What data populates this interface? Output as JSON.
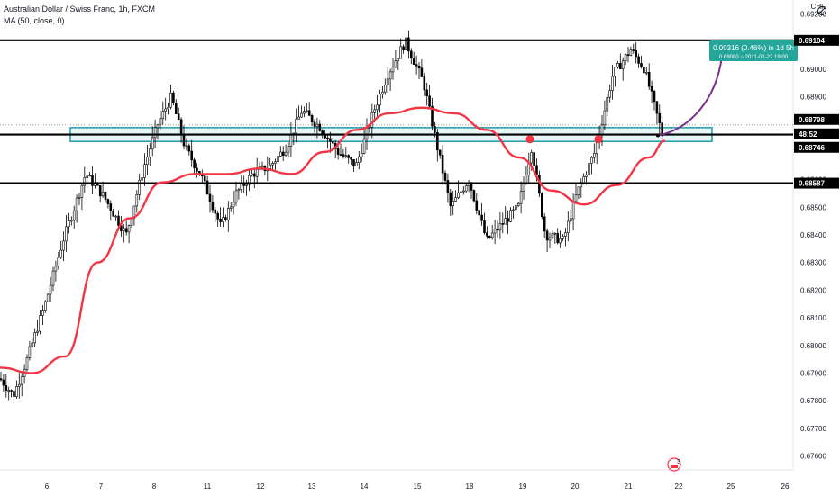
{
  "legend": {
    "symbol": "Australian Dollar / Swiss Franc, 1h, FXCM",
    "indicator": "MA (50, close, 0)"
  },
  "axis": {
    "currency": "CHF",
    "right_ticks": [
      "0.69200",
      "0.69000",
      "0.68900",
      "0.68600",
      "0.68500",
      "0.68400",
      "0.68300",
      "0.68200",
      "0.68100",
      "0.68000",
      "0.67900",
      "0.67800",
      "0.67700",
      "0.67600"
    ],
    "badge_count": "3"
  },
  "price_labels": [
    {
      "text": "0.69104",
      "value": 0.69104,
      "style": "black"
    },
    {
      "text": "0.68798",
      "value": 0.68798,
      "style": "black"
    },
    {
      "text": "48:52",
      "value": 0.68772,
      "style": "black"
    },
    {
      "text": "0.68746",
      "value": 0.68746,
      "style": "black"
    },
    {
      "text": "0.68587",
      "value": 0.68587,
      "style": "black"
    }
  ],
  "projection_box": {
    "line1": "0.00316 (0.46%) in 1d 5h",
    "line2a": "0.69080",
    "line2b": "2021-01-22",
    "line2c": "19:00",
    "color": "#26a69a"
  },
  "colors": {
    "candles": "#000000",
    "ma": "#f23645",
    "zone_border": "#1e9aa8",
    "zone_fill": "#ffffff",
    "projection": "#7b2d8e",
    "marker": "#f23645"
  },
  "chart_data": {
    "type": "candlestick",
    "title": "Australian Dollar / Swiss Franc, 1h, FXCM",
    "x_ticks": [
      "6",
      "7",
      "8",
      "11",
      "12",
      "13",
      "14",
      "15",
      "18",
      "19",
      "20",
      "21",
      "22",
      "25",
      "26"
    ],
    "ylim": [
      0.6755,
      0.6925
    ],
    "horizontal_lines": [
      0.69104,
      0.68763,
      0.68587
    ],
    "zone": [
      0.68738,
      0.68788
    ],
    "ma_path": [
      [
        0,
        0.6792
      ],
      [
        0.04,
        0.679
      ],
      [
        0.08,
        0.6796
      ],
      [
        0.12,
        0.683
      ],
      [
        0.16,
        0.6846
      ],
      [
        0.2,
        0.6859
      ],
      [
        0.24,
        0.6862
      ],
      [
        0.28,
        0.6862
      ],
      [
        0.32,
        0.6864
      ],
      [
        0.36,
        0.6862
      ],
      [
        0.4,
        0.687
      ],
      [
        0.44,
        0.6878
      ],
      [
        0.48,
        0.6884
      ],
      [
        0.52,
        0.6886
      ],
      [
        0.56,
        0.6884
      ],
      [
        0.6,
        0.6878
      ],
      [
        0.64,
        0.6868
      ],
      [
        0.68,
        0.6856
      ],
      [
        0.72,
        0.6851
      ],
      [
        0.76,
        0.6858
      ],
      [
        0.8,
        0.6868
      ],
      [
        0.82,
        0.6874
      ]
    ],
    "markers": [
      0.68746,
      0.68746
    ],
    "projection_target": 0.6908
  }
}
